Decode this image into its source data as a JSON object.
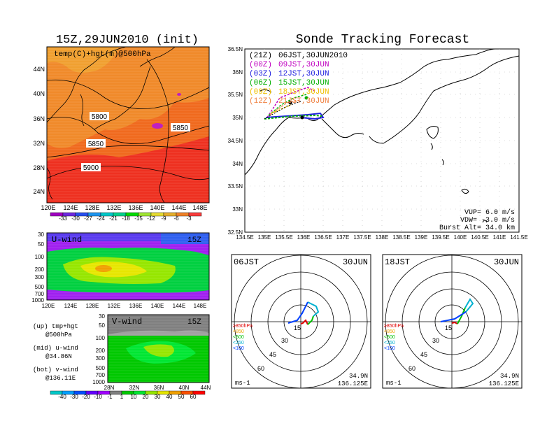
{
  "left": {
    "title": "15Z,29JUN2010 (init)",
    "map_label": "temp(C)+hgt(m)@500hPa",
    "lat_ticks": [
      "44N",
      "40N",
      "36N",
      "32N",
      "28N",
      "24N"
    ],
    "lon_ticks": [
      "120E",
      "124E",
      "128E",
      "132E",
      "136E",
      "140E",
      "144E",
      "148E"
    ],
    "contours": [
      "5800",
      "5850",
      "5850",
      "5900"
    ],
    "temp_scale": [
      "-33",
      "-30",
      "-27",
      "-24",
      "-21",
      "-18",
      "-15",
      "-12",
      "-9",
      "-6",
      "-3"
    ],
    "temp_colors": [
      "#a000c0",
      "#6e28e0",
      "#2850f0",
      "#1e96f0",
      "#00c8c8",
      "#00d28c",
      "#00dc00",
      "#a0e632",
      "#e6dc32",
      "#e6af2d",
      "#f08228",
      "#fa3c3c"
    ],
    "u_wind": {
      "label": "U-wind",
      "time": "15Z",
      "p_ticks": [
        "30",
        "50",
        "100",
        "200",
        "300",
        "500",
        "700",
        "1000"
      ]
    },
    "v_wind": {
      "label": "V-wind",
      "time": "15Z",
      "p_ticks": [
        "30",
        "50",
        "100",
        "200",
        "300",
        "500",
        "700",
        "1000"
      ],
      "lat_ticks": [
        "28N",
        "32N",
        "36N",
        "40N",
        "44N"
      ]
    },
    "legend_lines": [
      "(up) tmp+hgt",
      "@500hPa",
      "(mid) u-wind",
      "@34.86N",
      "(bot) v-wind",
      "@136.11E"
    ],
    "wind_scale": [
      "-40",
      "-30",
      "-20",
      "-10",
      "-1",
      "1",
      "10",
      "20",
      "30",
      "40",
      "50",
      "60"
    ],
    "wind_colors": [
      "#00c8c8",
      "#00a0ff",
      "#0050ff",
      "#6400ff",
      "#a000ff",
      "#808080",
      "#00c800",
      "#00e632",
      "#96e600",
      "#e6e600",
      "#f0a000",
      "#fa5000",
      "#ff0000"
    ]
  },
  "right": {
    "title": "Sonde Tracking Forecast",
    "tracks": [
      {
        "code": "(21Z)",
        "label": "06JST,30JUN2010",
        "color": "#000000"
      },
      {
        "code": "(00Z)",
        "label": "09JST,30JUN",
        "color": "#c000c0"
      },
      {
        "code": "(03Z)",
        "label": "12JST,30JUN",
        "color": "#2020e0"
      },
      {
        "code": "(06Z)",
        "label": "15JST,30JUN",
        "color": "#00b000"
      },
      {
        "code": "(09Z)",
        "label": "18JST,30JUN",
        "color": "#f0c000"
      },
      {
        "code": "(12Z)",
        "label": "21JST,30JUN",
        "color": "#f08040"
      }
    ],
    "lat_ticks": [
      "36.5N",
      "36N",
      "35.5N",
      "35N",
      "34.5N",
      "34N",
      "33.5N",
      "33N",
      "32.5N"
    ],
    "lon_ticks": [
      "134.5E",
      "135E",
      "135.5E",
      "136E",
      "136.5E",
      "137E",
      "137.5E",
      "138E",
      "138.5E",
      "139E",
      "139.5E",
      "140E",
      "140.5E",
      "141E",
      "141.5E"
    ],
    "info": [
      "VUP= 6.0 m/s",
      "VDW= -3.0 m/s",
      "Burst Alt= 34.0 km"
    ]
  },
  "hodographs": [
    {
      "time": "06JST",
      "date": "30JUN",
      "lat": "34.9N",
      "lon": "136.125E",
      "unit": "ms-1",
      "rings": [
        "15",
        "30",
        "45",
        "60"
      ],
      "levels": [
        "≥850hPa",
        "<850",
        "<500",
        "<250",
        "<100"
      ],
      "level_colors": [
        "#e00000",
        "#f0a000",
        "#00c000",
        "#00b0d0",
        "#0040ff"
      ]
    },
    {
      "time": "18JST",
      "date": "30JUN",
      "lat": "34.9N",
      "lon": "136.125E",
      "unit": "ms-1",
      "rings": [
        "15",
        "30",
        "45",
        "60"
      ],
      "levels": [
        "≥850hPa",
        "<850",
        "<500",
        "<250",
        "<100"
      ],
      "level_colors": [
        "#e00000",
        "#f0a000",
        "#00c000",
        "#00b0d0",
        "#0040ff"
      ]
    }
  ]
}
